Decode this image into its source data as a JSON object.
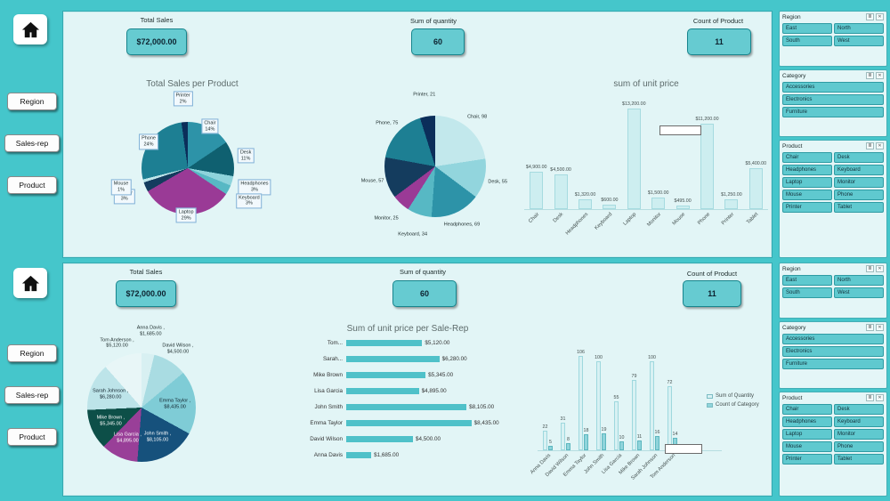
{
  "theme": {
    "background": "#45c6cb",
    "panel": "#e2f5f6",
    "kpi_fill": "#66cbd1",
    "kpi_border": "#17858d",
    "slicer_item_fill": "#5fc9cf",
    "slicer_item_border": "#2e9ba3",
    "bar_pale": "#cdeef0",
    "bar_teal": "#4fc1c9"
  },
  "nav": {
    "buttons": [
      "Region",
      "Sales-rep",
      "Product"
    ]
  },
  "top_panel": {
    "kpis": [
      {
        "label": "Total Sales",
        "value": "$72,000.00"
      },
      {
        "label": "Sum of quantity",
        "value": "60"
      },
      {
        "label": "Count of Product",
        "value": "11"
      }
    ]
  },
  "bottom_panel": {
    "kpis": [
      {
        "label": "Total Sales",
        "value": "$72,000.00"
      },
      {
        "label": "Sum of quantity",
        "value": "60"
      },
      {
        "label": "Count of Product",
        "value": "11"
      }
    ]
  },
  "slicers": {
    "region": {
      "title": "Region",
      "columns": 2,
      "items": [
        "East",
        "North",
        "South",
        "West"
      ]
    },
    "category": {
      "title": "Category",
      "columns": 1,
      "items": [
        "Accessories",
        "Electronics",
        "Furniture"
      ]
    },
    "product": {
      "title": "Product",
      "columns": 2,
      "items": [
        "Chair",
        "Desk",
        "Headphones",
        "Keyboard",
        "Laptop",
        "Monitor",
        "Mouse",
        "Phone",
        "Printer",
        "Tablet"
      ]
    }
  },
  "chart_data": [
    {
      "id": "total-sales-per-product-pie",
      "type": "pie",
      "title": "Total Sales per Product",
      "label_style": "callout",
      "slices": [
        {
          "label": "Chair",
          "pct_label": "14%",
          "value": 14,
          "color": "#2d93a8"
        },
        {
          "label": "Desk",
          "pct_label": "11%",
          "value": 11,
          "color": "#0f6070"
        },
        {
          "label": "Headphones",
          "pct_label": "3%",
          "value": 3,
          "color": "#8ed3db"
        },
        {
          "label": "Keyboard",
          "pct_label": "3%",
          "value": 3,
          "color": "#57b8c4"
        },
        {
          "label": "Laptop",
          "pct_label": "29%",
          "value": 29,
          "color": "#9a3a96"
        },
        {
          "label": "Monitor",
          "pct_label": "3%",
          "value": 3,
          "color": "#143c5e"
        },
        {
          "label": "Mouse",
          "pct_label": "1%",
          "value": 1,
          "color": "#bfe6ea"
        },
        {
          "label": "Phone",
          "pct_label": "24%",
          "value": 24,
          "color": "#1d7f93"
        },
        {
          "label": "Printer",
          "pct_label": "2%",
          "value": 2,
          "color": "#0b2e5a"
        }
      ]
    },
    {
      "id": "quantity-per-product-pie",
      "type": "pie",
      "title": "",
      "slices": [
        {
          "label": "Chair, 98",
          "value": 98,
          "color": "#c2e8ec"
        },
        {
          "label": "Desk, 55",
          "value": 55,
          "color": "#92d5dd"
        },
        {
          "label": "Headphones, 69",
          "value": 69,
          "color": "#2d93a8"
        },
        {
          "label": "Keyboard, 34",
          "value": 34,
          "color": "#57b8c4"
        },
        {
          "label": "Monitor, 25",
          "value": 25,
          "color": "#9a3a96"
        },
        {
          "label": "Mouse, 57",
          "value": 57,
          "color": "#143c5e"
        },
        {
          "label": "Phone, 75",
          "value": 75,
          "color": "#1d7f93"
        },
        {
          "label": "Printer, 21",
          "value": 21,
          "color": "#0b2e5a"
        }
      ]
    },
    {
      "id": "sum-of-unit-price-bar",
      "type": "bar",
      "title": "sum of unit price",
      "categories": [
        "Chair",
        "Desk",
        "Headphones",
        "Keyboard",
        "Laptop",
        "Monitor",
        "Mouse",
        "Phone",
        "Printer",
        "Tablet"
      ],
      "values": [
        4900,
        4500,
        1320,
        600,
        13200,
        1500,
        495,
        11200,
        1250,
        5400
      ],
      "value_labels": [
        "$4,900.00",
        "$4,500.00",
        "$1,320.00",
        "$600.00",
        "$13,200.00",
        "$1,500.00",
        "$495.00",
        "$11,200.00",
        "$1,250.00",
        "$5,400.00"
      ],
      "ylim": [
        0,
        14000
      ],
      "bar_color": "#cdeef0"
    },
    {
      "id": "sum-of-unit-price-per-rep-hbar",
      "type": "hbar",
      "title": "Sum of unit price per Sale-Rep",
      "categories": [
        "Tom...",
        "Sarah...",
        "Mike Brown",
        "Lisa Garcia",
        "John Smith",
        "Emma Taylor",
        "David Wilson",
        "Anna Davis"
      ],
      "values": [
        5120,
        6280,
        5345,
        4895,
        8105,
        8435,
        4500,
        1685
      ],
      "value_labels": [
        "$5,120.00",
        "$6,280.00",
        "$5,345.00",
        "$4,895.00",
        "$8,105.00",
        "$8,435.00",
        "$4,500.00",
        "$1,685.00"
      ],
      "xlim": [
        0,
        9000
      ],
      "bar_color": "#4fc1c9"
    },
    {
      "id": "sales-per-rep-pie",
      "type": "pie",
      "title": "",
      "slices": [
        {
          "label": "Anna Davis ,",
          "sublabel": "$1,685.00",
          "value": 1685,
          "color": "#d8f0f2",
          "inside": false
        },
        {
          "label": "David Wilson ,",
          "sublabel": "$4,500.00",
          "value": 4500,
          "color": "#a9dce2",
          "inside": false
        },
        {
          "label": "Emma Taylor ,",
          "sublabel": "$8,435.00",
          "value": 8435,
          "color": "#7fccd6",
          "inside": true,
          "text_color": "#10212b"
        },
        {
          "label": "John Smith ,",
          "sublabel": "$8,105.00",
          "value": 8105,
          "color": "#16517c",
          "inside": true,
          "text_color": "#ffffff"
        },
        {
          "label": "Lisa Garcia ,",
          "sublabel": "$4,895.00",
          "value": 4895,
          "color": "#993f98",
          "inside": true,
          "text_color": "#ffffff"
        },
        {
          "label": "Mike Brown ,",
          "sublabel": "$5,345.00",
          "value": 5345,
          "color": "#0d4f48",
          "inside": true,
          "text_color": "#ffffff"
        },
        {
          "label": "Sarah Johnson ,",
          "sublabel": "$6,280.00",
          "value": 6280,
          "color": "#bde4e9",
          "inside": true,
          "text_color": "#10212b"
        },
        {
          "label": "Tom Anderson ,",
          "sublabel": "$5,120.00",
          "value": 5120,
          "color": "#e8f6f7",
          "inside": false
        }
      ]
    },
    {
      "id": "quantity-and-category-column",
      "type": "column",
      "title": "",
      "categories": [
        "Anna Davis",
        "David Wilson",
        "Emma Taylor",
        "John Smith",
        "Lisa Garcia",
        "Mike Brown",
        "Sarah Johnson",
        "Tom Anderson"
      ],
      "series": [
        {
          "name": "Sum of Quantity",
          "color": "#d8f1f3",
          "border": "#9ed8de",
          "values": [
            22,
            31,
            106,
            100,
            55,
            79,
            100,
            72
          ]
        },
        {
          "name": "Count of Category",
          "color": "#8fd4db",
          "border": "#5cb7bf",
          "values": [
            5,
            8,
            18,
            19,
            10,
            11,
            16,
            14
          ]
        }
      ],
      "ylim": [
        0,
        115
      ],
      "legend_position": "right"
    }
  ]
}
